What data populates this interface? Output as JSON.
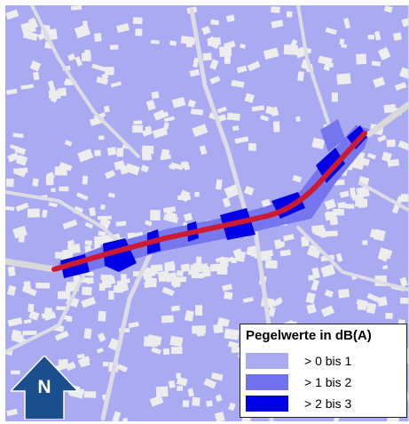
{
  "map": {
    "colors": {
      "background": "#aaaaf2",
      "buildings": "#ededed",
      "roads": "#dcdce6",
      "road_main": "#d9d9d9",
      "noise_main_road": "#cc1a33",
      "level_0_1": "#aaaaf2",
      "level_1_2": "#7272ee",
      "level_2_3": "#0000e6"
    }
  },
  "legend": {
    "title": "Pegelwerte in dB(A)",
    "items": [
      {
        "label": "> 0 bis 1",
        "color": "#aaaaf2"
      },
      {
        "label": "> 1 bis 2",
        "color": "#7272ee"
      },
      {
        "label": "> 2 bis 3",
        "color": "#0000e6"
      }
    ]
  },
  "north_arrow": {
    "letter": "N",
    "color": "#1a4e8c",
    "icon": "north-arrow-icon"
  }
}
